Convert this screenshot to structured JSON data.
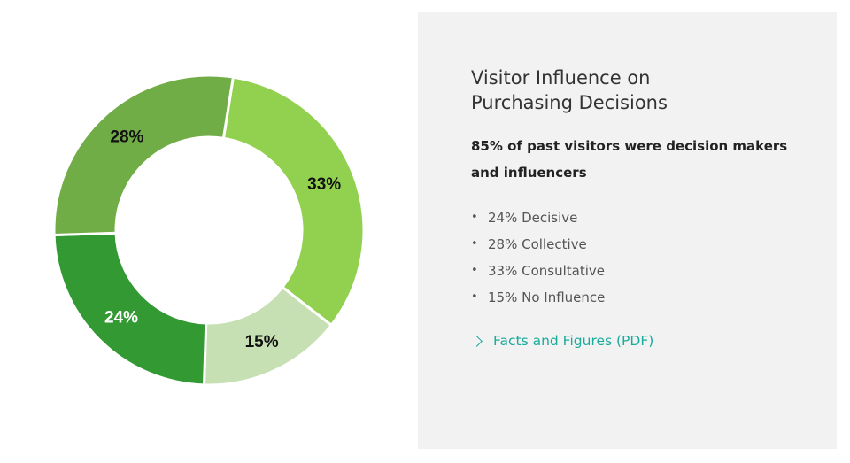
{
  "chart_data": {
    "type": "pie",
    "donut": true,
    "slices": [
      {
        "label": "33%",
        "value": 33,
        "color": "#92d050",
        "label_color": "#111111"
      },
      {
        "label": "15%",
        "value": 15,
        "color": "#c6e0b4",
        "label_color": "#111111"
      },
      {
        "label": "24%",
        "value": 24,
        "color": "#339933",
        "label_color": "#ffffff"
      },
      {
        "label": "28%",
        "value": 28,
        "color": "#70ad47",
        "label_color": "#111111"
      }
    ],
    "start_angle_deg": 9
  },
  "panel": {
    "title": "Visitor Influence on Purchasing Decisions",
    "subtitle": "85% of past visitors were decision makers and influencers",
    "bullet_symbol": "•",
    "bullets": [
      "24% Decisive",
      "28% Collective",
      "33% Consultative",
      "15% No Influence"
    ],
    "link": {
      "label": "Facts and Figures (PDF)",
      "icon": "chevron-right-icon",
      "color": "#1aab9b"
    }
  }
}
